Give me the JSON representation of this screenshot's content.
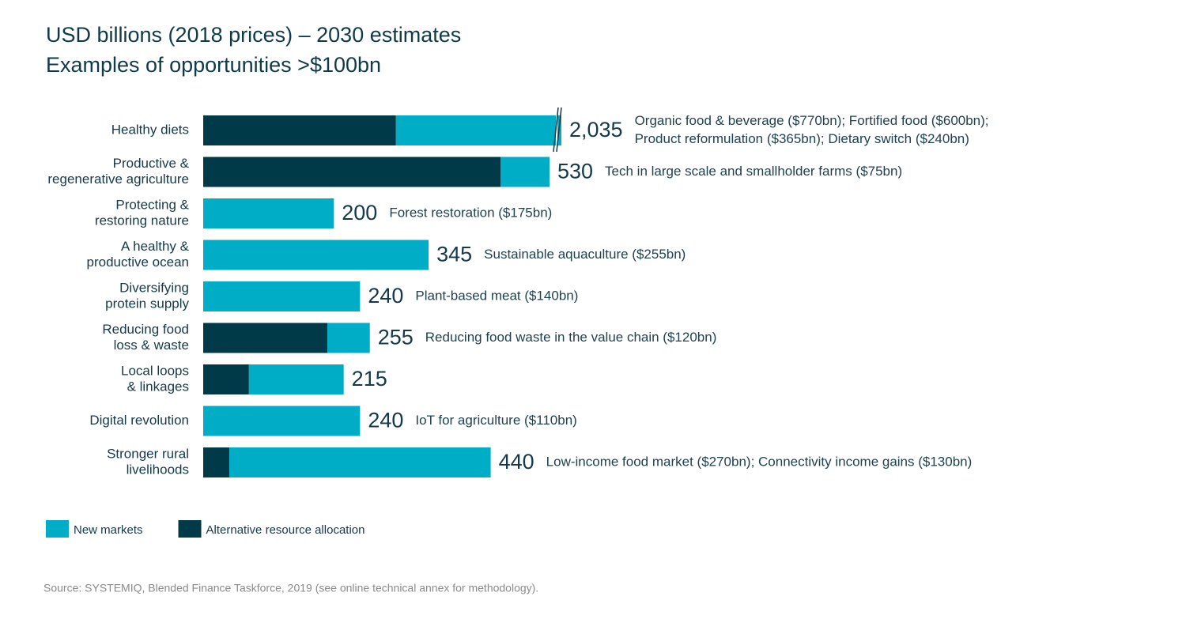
{
  "chart_data": {
    "type": "stacked_barh",
    "title": [
      "USD billions (2018 prices) – 2030 estimates",
      "Examples of opportunities >$100bn"
    ],
    "categories": [
      [
        "Healthy diets"
      ],
      [
        "Productive &",
        "regenerative agriculture"
      ],
      [
        "Protecting &",
        "restoring nature"
      ],
      [
        "A healthy &",
        "productive ocean"
      ],
      [
        "Diversifying",
        "protein supply"
      ],
      [
        "Reducing food",
        "loss & waste"
      ],
      [
        "Local loops",
        "& linkages"
      ],
      [
        "Digital revolution"
      ],
      [
        "Stronger rural",
        "livelihoods"
      ]
    ],
    "series": [
      {
        "name": "Alternative resource allocation",
        "color": "#003a48",
        "values": [
          295,
          455,
          0,
          0,
          0,
          190,
          70,
          0,
          40
        ]
      },
      {
        "name": "New markets",
        "color": "#00adc6",
        "values": [
          1740,
          75,
          200,
          345,
          240,
          65,
          145,
          240,
          400
        ]
      }
    ],
    "totals": [
      {
        "value": 2035,
        "label": "2,035"
      },
      530,
      200,
      345,
      240,
      255,
      215,
      240,
      440
    ],
    "annotations": [
      [
        "Organic food & beverage ($770bn); Fortified food ($600bn);",
        "Product reformulation ($365bn); Dietary switch ($240bn)"
      ],
      [
        "Tech in large scale and smallholder farms ($75bn)"
      ],
      [
        "Forest restoration ($175bn)"
      ],
      [
        "Sustainable aquaculture ($255bn)"
      ],
      [
        "Plant-based meat ($140bn)"
      ],
      [
        "Reducing food waste in the value chain ($120bn)"
      ],
      null,
      [
        "IoT for agriculture ($110bn)"
      ],
      [
        "Low-income food market ($270bn); Connectivity income gains ($130bn)"
      ]
    ],
    "source": "Source: SYSTEMIQ, Blended Finance Taskforce, 2019 (see online technical annex  for methodology)."
  }
}
